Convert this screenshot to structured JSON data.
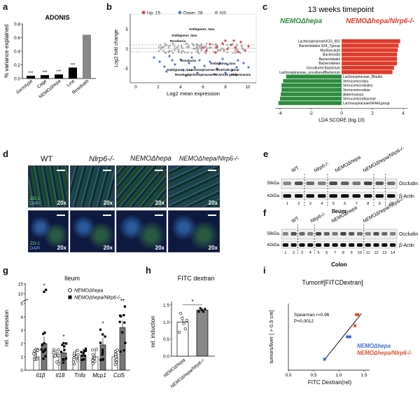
{
  "panels": {
    "a": {
      "label": "a",
      "title": "ADONIS",
      "ylabel": "% variance explained",
      "categories": [
        "Genotype",
        "Cage",
        "NEMOΔhepa",
        "Line",
        "Residuals"
      ],
      "values": [
        0.04,
        0.05,
        0.06,
        0.16,
        0.64
      ],
      "stars": [
        "***",
        "***",
        "***",
        "***",
        ""
      ],
      "yticks": [
        "0.0",
        "0.2",
        "0.4",
        "0.6",
        "0.8"
      ],
      "ylim": [
        0,
        0.8
      ]
    },
    "b": {
      "label": "b",
      "legend": [
        {
          "label": "Up: 15",
          "color": "#e04040"
        },
        {
          "label": "Down: 28",
          "color": "#4a7fd0"
        },
        {
          "label": "NS",
          "color": "#aaaaaa"
        }
      ],
      "xlabel": "Log2 mean expression",
      "ylabel": "Log2 fold change",
      "xticks": [
        "0",
        "2",
        "4",
        "6",
        "8",
        "10"
      ],
      "yticks": [
        "5",
        "0",
        "-5"
      ],
      "annotations": [
        "Ambiguous_taxa",
        "Ambiguous_taxa",
        "Roseburia",
        "Roseburia",
        "Ambiguous_taxa",
        "Ambiguous_taxa",
        "Roseburia",
        "Lachnospiraceae NK4A136 group",
        "Lachnospiraceae NK4A136 group",
        "Akkermansia"
      ]
    },
    "c": {
      "label": "c",
      "title": "13 weeks timepoint",
      "group_left": "NEMOΔhepa",
      "group_right": "NEMOΔhepa/Nlrp6-/-",
      "left_color": "#2e8b3e",
      "right_color": "#e03a2a",
      "xlabel": "LDA SCORE (log 10)",
      "xticks": [
        "-4",
        "-2",
        "0",
        "2",
        "4"
      ],
      "bars_right": [
        {
          "name": "LachnospiraceaeUCG_001",
          "value": 3.8
        },
        {
          "name": "Bacteroidales S24_7group",
          "value": 3.7
        },
        {
          "name": "Muribaculum",
          "value": 3.65
        },
        {
          "name": "Bacteroidia",
          "value": 3.6
        },
        {
          "name": "Bacteroidales",
          "value": 3.6
        },
        {
          "name": "Bacteroidetes",
          "value": 3.6
        },
        {
          "name": "Uncultured Bacterium",
          "value": 3.4
        },
        {
          "name": "Lachnospiraceae_unculturedBacterium",
          "value": 3.3
        }
      ],
      "bars_left": [
        {
          "name": "Lachnospiraceae_Blautia",
          "value": -3.6
        },
        {
          "name": "Verrucomicrobia",
          "value": -3.8
        },
        {
          "name": "Verrucomicrobiales",
          "value": -3.9
        },
        {
          "name": "Verrucomicrobiae",
          "value": -3.9
        },
        {
          "name": "Akkermansia",
          "value": -3.95
        },
        {
          "name": "Verrucomicrobiaceae",
          "value": -4.0
        },
        {
          "name": "LachnospiraceaeNK4A1group",
          "value": -4.1
        }
      ]
    },
    "d": {
      "label": "d",
      "columns": [
        "WT",
        "Nlrp6-/-",
        "NEMOΔhepa",
        "NEMOΔhepa/Nlrp6-/-"
      ],
      "zoom": "20x",
      "stain_zo": "ZO-1",
      "stain_dapi": "DAPI"
    },
    "e": {
      "label": "e",
      "groups": [
        "WT",
        "Nlrp6-/-",
        "NEMOΔhepa",
        "NEMOΔhepa/Nlrp6-/-"
      ],
      "bands": [
        "Occludin",
        "β-Actin"
      ],
      "markers": [
        "59kDa",
        "42kDa"
      ],
      "lanes": [
        "1",
        "2",
        "3",
        "4",
        "5",
        "6",
        "7",
        "8",
        "9",
        "10"
      ],
      "tissue": "Ileum"
    },
    "f": {
      "label": "f",
      "groups": [
        "WT",
        "Nlrp6-/-",
        "NEMOΔhepa",
        "NEMOΔhepa/Nlrp6-/-"
      ],
      "bands": [
        "Occludin",
        "β-Actin"
      ],
      "markers": [
        "59kDa",
        "42kDa"
      ],
      "lanes": [
        "1",
        "2",
        "3",
        "4",
        "5",
        "6",
        "7",
        "8",
        "9",
        "10",
        "11",
        "12",
        "13",
        "14"
      ],
      "tissue": "Colon"
    },
    "g": {
      "label": "g",
      "title": "Ileum",
      "ylabel": "rel. expression",
      "yticks": [
        "0",
        "1",
        "2",
        "3",
        "4",
        "5",
        "10",
        "15"
      ],
      "genes": [
        "Il1β",
        "Il18",
        "Tnfα",
        "Mcp1",
        "Ccl5"
      ],
      "legend": [
        "NEMOΔhepa",
        "NEMOΔhepa/Nlrp6-/-"
      ],
      "means_a": [
        1.0,
        1.0,
        1.0,
        1.0,
        1.0
      ],
      "means_b": [
        2.0,
        1.3,
        1.1,
        1.9,
        3.2
      ],
      "stars": [
        "*",
        "*",
        "",
        "*",
        "**"
      ]
    },
    "h": {
      "label": "h",
      "title": "FITC dextran",
      "ylabel": "rel. induction",
      "yticks": [
        "0.0",
        "0.5",
        "1.0",
        "1.5"
      ],
      "categories": [
        "NEMOΔhepa",
        "NEMOΔhepa/Nlrp6-/-"
      ],
      "values": [
        1.0,
        1.35
      ],
      "star": "*"
    },
    "i": {
      "label": "i",
      "title": "Tumor#[FITCDextran]",
      "ylabel": "tumors/liver [ > 0.5 cm]",
      "xlabel": "FITC Dextran(rel)",
      "stats1": "Spearman r=0.96",
      "stats2": "P=0,0012",
      "xticks": [
        "0.0",
        "0.5",
        "1.0",
        "1.5"
      ],
      "legend": [
        "NEMOΔhepa",
        "NEMOΔhepa/Nlrp6-/-"
      ],
      "legend_colors": [
        "#3a6fd0",
        "#e0502a"
      ]
    }
  },
  "chart_data": [
    {
      "type": "bar",
      "title": "ADONIS",
      "categories": [
        "Genotype",
        "Cage",
        "NEMOΔhepa",
        "Line",
        "Residuals"
      ],
      "values": [
        0.04,
        0.05,
        0.06,
        0.16,
        0.64
      ],
      "ylabel": "% variance explained",
      "ylim": [
        0,
        0.8
      ]
    },
    {
      "type": "bar",
      "title": "FITC dextran",
      "categories": [
        "NEMOΔhepa",
        "NEMOΔhepa/Nlrp6-/-"
      ],
      "values": [
        1.0,
        1.35
      ],
      "ylabel": "rel. induction",
      "ylim": [
        0,
        1.6
      ]
    },
    {
      "type": "scatter",
      "title": "Tumor#[FITCDextran]",
      "x": [
        0.72,
        1.17,
        1.22,
        1.32,
        1.35,
        1.38
      ],
      "y": [
        1,
        3,
        3,
        4,
        5,
        5
      ],
      "xlabel": "FITC Dextran(rel)",
      "ylabel": "tumors/liver [ > 0.5 cm]",
      "xlim": [
        0,
        1.5
      ]
    }
  ]
}
